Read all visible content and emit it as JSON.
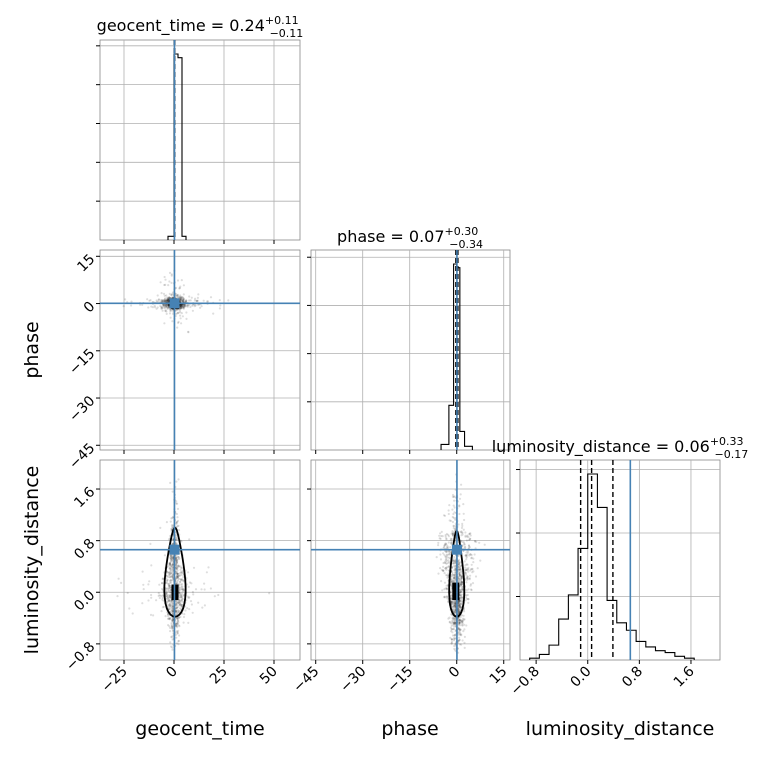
{
  "chart_data": {
    "type": "corner",
    "parameters": [
      "geocent_time",
      "phase",
      "luminosity_distance"
    ],
    "truths": {
      "geocent_time": 0.24,
      "phase": 0.07,
      "luminosity_distance": 0.66
    },
    "titles": [
      {
        "param": "geocent_time",
        "prefix": "geocent_time = 0.24",
        "upper": "+0.11",
        "lower": "−0.11"
      },
      {
        "param": "phase",
        "prefix": "phase = 0.07",
        "upper": "+0.30",
        "lower": "−0.34"
      },
      {
        "param": "luminosity_distance",
        "prefix": "luminosity_distance = 0.06",
        "upper": "+0.33",
        "lower": "−0.17"
      }
    ],
    "axes": {
      "geocent_time": {
        "range": [
          -37,
          63
        ],
        "ticks": [
          -25,
          0,
          25,
          50
        ],
        "tick_labels": [
          "−25",
          "0",
          "25",
          "50"
        ],
        "xlabel": "geocent_time"
      },
      "phase": {
        "range": [
          -46.5,
          17
        ],
        "ticks": [
          -45,
          -30,
          -15,
          0,
          15
        ],
        "tick_labels": [
          "−45",
          "−30",
          "−15",
          "0",
          "15"
        ],
        "xlabel": "phase",
        "ylabel": "phase"
      },
      "luminosity_distance": {
        "range": [
          -1.05,
          2.05
        ],
        "ticks": [
          -0.8,
          0.0,
          0.8,
          1.6
        ],
        "tick_labels": [
          "−0.8",
          "0.0",
          "0.8",
          "1.6"
        ],
        "xlabel": "luminosity_distance",
        "ylabel": "luminosity_distance"
      }
    },
    "hist_geocent_time": {
      "bin_edges": [
        -3,
        0,
        2,
        4,
        6
      ],
      "values": [
        0.02,
        1.0,
        0.98,
        0.02
      ],
      "quantiles": [
        0.13,
        0.24,
        0.35
      ]
    },
    "hist_phase": {
      "bin_edges": [
        -5,
        -2.5,
        -1,
        0,
        1,
        2.5,
        5
      ],
      "values": [
        0.03,
        0.24,
        1.0,
        0.98,
        0.1,
        0.02
      ],
      "quantiles": [
        -0.27,
        0.07,
        0.37
      ]
    },
    "hist_luminosity_distance": {
      "bin_edges": [
        -0.9,
        -0.75,
        -0.6,
        -0.45,
        -0.3,
        -0.15,
        0.0,
        0.15,
        0.3,
        0.45,
        0.6,
        0.75,
        0.9,
        1.05,
        1.2,
        1.35,
        1.5,
        1.65
      ],
      "values": [
        0.01,
        0.03,
        0.08,
        0.22,
        0.35,
        0.6,
        1.0,
        0.82,
        0.32,
        0.2,
        0.16,
        0.1,
        0.07,
        0.05,
        0.04,
        0.02,
        0.01
      ],
      "quantiles": [
        -0.11,
        0.06,
        0.39
      ]
    },
    "grid": true
  }
}
